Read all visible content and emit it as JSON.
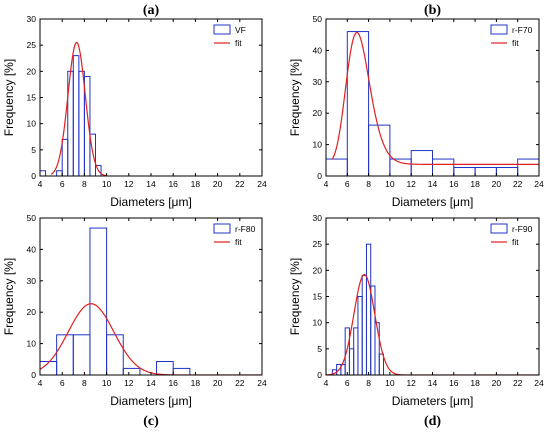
{
  "colors": {
    "bar": "#1f33c8",
    "fit": "#e02020",
    "axis": "#000000"
  },
  "chart_data": [
    {
      "type": "bar",
      "title": "(a)",
      "xlabel": "Diameters [μm]",
      "ylabel": "Frequency [%]",
      "xlim": [
        4,
        24
      ],
      "ylim": [
        0,
        30
      ],
      "xticks": [
        "4",
        "6",
        "8",
        "10",
        "12",
        "14",
        "16",
        "18",
        "20",
        "22",
        "24"
      ],
      "yticks": [
        "0",
        "5",
        "10",
        "15",
        "20",
        "25",
        "30"
      ],
      "legend": {
        "placement": "top-right",
        "series": "VF",
        "fit": "fit"
      },
      "bin_width": 0.5,
      "bins": [
        {
          "x": 4.0,
          "y": 1
        },
        {
          "x": 5.5,
          "y": 1
        },
        {
          "x": 6.0,
          "y": 7
        },
        {
          "x": 6.5,
          "y": 20
        },
        {
          "x": 7.0,
          "y": 23
        },
        {
          "x": 7.5,
          "y": 20
        },
        {
          "x": 8.0,
          "y": 19
        },
        {
          "x": 8.5,
          "y": 8
        },
        {
          "x": 9.0,
          "y": 2
        }
      ],
      "fit": {
        "type": "gaussian",
        "center": 7.3,
        "sigma": 0.78,
        "peak": 25.5,
        "baseline": 0,
        "curve_range": [
          5,
          10
        ]
      }
    },
    {
      "type": "bar",
      "title": "(b)",
      "xlabel": "Diameters [μm]",
      "ylabel": "Frequency [%]",
      "xlim": [
        4,
        24
      ],
      "ylim": [
        0,
        50
      ],
      "xticks": [
        "4",
        "6",
        "8",
        "10",
        "12",
        "14",
        "16",
        "18",
        "20",
        "22",
        "24"
      ],
      "yticks": [
        "0",
        "10",
        "20",
        "30",
        "40",
        "50"
      ],
      "legend": {
        "placement": "top-right",
        "series": "r-F70",
        "fit": "fit"
      },
      "bin_width": 2,
      "bins": [
        {
          "x": 4,
          "y": 5.4
        },
        {
          "x": 6,
          "y": 46
        },
        {
          "x": 8,
          "y": 16.2
        },
        {
          "x": 10,
          "y": 5.4
        },
        {
          "x": 12,
          "y": 8.1
        },
        {
          "x": 14,
          "y": 5.4
        },
        {
          "x": 16,
          "y": 2.7
        },
        {
          "x": 18,
          "y": 2.7
        },
        {
          "x": 20,
          "y": 2.7
        },
        {
          "x": 22,
          "y": 5.4
        }
      ],
      "fit": {
        "type": "lognormal",
        "center": 6.9,
        "sigma": 0.16,
        "peak": 42,
        "baseline": 3.7,
        "curve_range": [
          4.6,
          24
        ]
      }
    },
    {
      "type": "bar",
      "title": "(c)",
      "xlabel": "Diameters [μm]",
      "ylabel": "Frequency [%]",
      "xlim": [
        4,
        24
      ],
      "ylim": [
        0,
        50
      ],
      "xticks": [
        "4",
        "6",
        "8",
        "10",
        "12",
        "14",
        "16",
        "18",
        "20",
        "22",
        "24"
      ],
      "yticks": [
        "0",
        "10",
        "20",
        "30",
        "40",
        "50"
      ],
      "legend": {
        "placement": "top-right",
        "series": "r-F80",
        "fit": "fit"
      },
      "bin_width": 1.5,
      "bins": [
        {
          "x": 4.0,
          "y": 4.3
        },
        {
          "x": 5.5,
          "y": 12.8
        },
        {
          "x": 7.0,
          "y": 12.8
        },
        {
          "x": 8.5,
          "y": 46.8
        },
        {
          "x": 10.0,
          "y": 12.8
        },
        {
          "x": 11.5,
          "y": 2.1
        },
        {
          "x": 13.0,
          "y": 0
        },
        {
          "x": 14.5,
          "y": 4.3
        },
        {
          "x": 16.0,
          "y": 2.1
        }
      ],
      "fit": {
        "type": "gaussian",
        "center": 8.6,
        "sigma": 2.05,
        "peak": 22.7,
        "baseline": 0,
        "curve_range": [
          4,
          24
        ]
      }
    },
    {
      "type": "bar",
      "title": "(d)",
      "xlabel": "Diameters [μm]",
      "ylabel": "Frequency [%]",
      "xlim": [
        4,
        24
      ],
      "ylim": [
        0,
        30
      ],
      "xticks": [
        "4",
        "6",
        "8",
        "10",
        "12",
        "14",
        "16",
        "18",
        "20",
        "22",
        "24"
      ],
      "yticks": [
        "0",
        "5",
        "10",
        "15",
        "20",
        "25",
        "30"
      ],
      "legend": {
        "placement": "top-right",
        "series": "r-F90",
        "fit": "fit"
      },
      "bin_width": 0.4,
      "bins": [
        {
          "x": 4.6,
          "y": 1
        },
        {
          "x": 5.0,
          "y": 2
        },
        {
          "x": 5.4,
          "y": 2
        },
        {
          "x": 5.8,
          "y": 9
        },
        {
          "x": 6.2,
          "y": 5
        },
        {
          "x": 6.6,
          "y": 9
        },
        {
          "x": 7.0,
          "y": 15
        },
        {
          "x": 7.4,
          "y": 19
        },
        {
          "x": 7.8,
          "y": 25
        },
        {
          "x": 8.2,
          "y": 17
        },
        {
          "x": 8.6,
          "y": 10
        },
        {
          "x": 9.0,
          "y": 4
        }
      ],
      "fit": {
        "type": "gaussian",
        "center": 7.6,
        "sigma": 0.98,
        "peak": 19.2,
        "baseline": 0,
        "curve_range": [
          4,
          24
        ]
      }
    }
  ]
}
